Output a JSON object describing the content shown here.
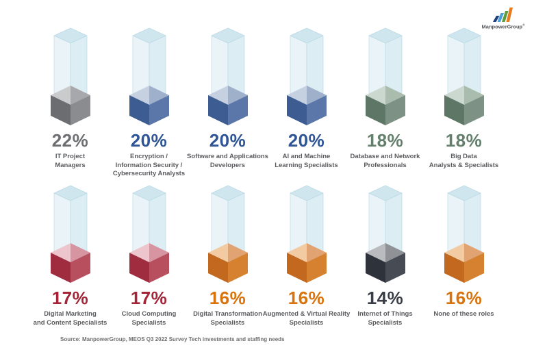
{
  "logo": {
    "text": "ManpowerGroup",
    "reg_mark": "®",
    "bar_colors": [
      "#1f3e7c",
      "#4a9fd8",
      "#5f9e3e",
      "#e87a1e"
    ]
  },
  "source_note": "Source: ManpowerGroup, MEOS Q3 2022 Survey Tech investments and staffing needs",
  "pillar": {
    "top": "#cfe6ef",
    "left": "#eaf4f8",
    "right": "#dcedf4",
    "edge": "#bcdae5"
  },
  "palettes": {
    "gray": {
      "num": "#6d6e71",
      "left": "#6b6d70",
      "right": "#8a8c8f",
      "topL": "#c9cbcd",
      "topR": "#a6a8ab"
    },
    "blue": {
      "num": "#2f5597",
      "left": "#3d5c92",
      "right": "#5b76a8",
      "topL": "#c5d0e0",
      "topR": "#9fb0cb"
    },
    "green": {
      "num": "#64806d",
      "left": "#5d7666",
      "right": "#7d9284",
      "topL": "#cbd8cf",
      "topR": "#a9bcae"
    },
    "red": {
      "num": "#a32638",
      "left": "#a02c40",
      "right": "#b84f5e",
      "topL": "#ecc6cc",
      "topR": "#d695a0"
    },
    "orange": {
      "num": "#d9730d",
      "left": "#c2681f",
      "right": "#d5812f",
      "topL": "#f2cba3",
      "topR": "#e2a372"
    },
    "dark": {
      "num": "#393d45",
      "left": "#2e323a",
      "right": "#474b54",
      "topL": "#b9bbbe",
      "topR": "#8e9195"
    }
  },
  "chart_data": {
    "type": "bar",
    "title": "",
    "unit": "%",
    "layout": {
      "rows": 2,
      "columns_per_row": 6,
      "legend": "none",
      "grid": "off"
    },
    "categories": [
      "IT Project Managers",
      "Encryption / Information Security / Cybersecurity Analysts",
      "Software and Applications Developers",
      "AI and Machine Learning Specialists",
      "Database and Network Professionals",
      "Big Data Analysts & Specialists",
      "Digital Marketing and Content Specialists",
      "Cloud Computing Specialists",
      "Digital Transformation Specialists",
      "Augmented & Virtual Reality Specialists",
      "Internet of Things Specialists",
      "None of these roles"
    ],
    "values": [
      22,
      20,
      20,
      20,
      18,
      18,
      17,
      17,
      16,
      16,
      14,
      16
    ],
    "items": [
      {
        "row": 1,
        "value_label": "22%",
        "color": "gray",
        "lines": [
          "IT Project",
          "Managers"
        ]
      },
      {
        "row": 1,
        "value_label": "20%",
        "color": "blue",
        "lines": [
          "Encryption /",
          "Information Security /",
          "Cybersecurity Analysts"
        ]
      },
      {
        "row": 1,
        "value_label": "20%",
        "color": "blue",
        "lines": [
          "Software and Applications",
          "Developers"
        ]
      },
      {
        "row": 1,
        "value_label": "20%",
        "color": "blue",
        "lines": [
          "AI and Machine",
          "Learning Specialists"
        ]
      },
      {
        "row": 1,
        "value_label": "18%",
        "color": "green",
        "lines": [
          "Database and Network",
          "Professionals"
        ]
      },
      {
        "row": 1,
        "value_label": "18%",
        "color": "green",
        "lines": [
          "Big Data",
          "Analysts & Specialists"
        ]
      },
      {
        "row": 2,
        "value_label": "17%",
        "color": "red",
        "lines": [
          "Digital Marketing",
          "and Content Specialists"
        ]
      },
      {
        "row": 2,
        "value_label": "17%",
        "color": "red",
        "lines": [
          "Cloud Computing",
          "Specialists"
        ]
      },
      {
        "row": 2,
        "value_label": "16%",
        "color": "orange",
        "lines": [
          "Digital Transformation",
          "Specialists"
        ]
      },
      {
        "row": 2,
        "value_label": "16%",
        "color": "orange",
        "lines": [
          "Augmented & Virtual Reality",
          "Specialists"
        ]
      },
      {
        "row": 2,
        "value_label": "14%",
        "color": "dark",
        "lines": [
          "Internet of Things",
          "Specialists"
        ]
      },
      {
        "row": 2,
        "value_label": "16%",
        "color": "orange",
        "lines": [
          "None of these roles"
        ]
      }
    ]
  }
}
